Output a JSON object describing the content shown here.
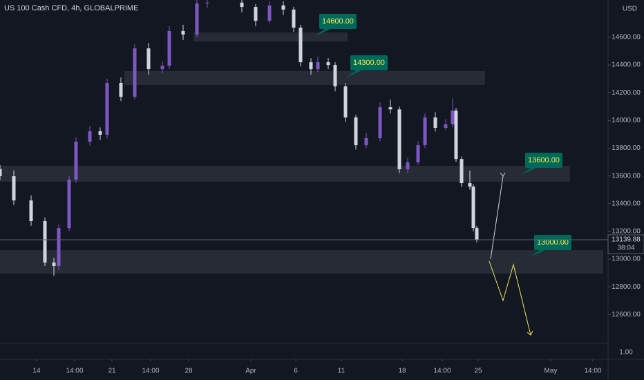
{
  "chart_data": {
    "type": "candlestick",
    "title": "US 100 Cash CFD, 4h, GLOBALPRIME",
    "currency": "USD",
    "up_color": "#7e57c2",
    "down_color": "#d1d4dc",
    "x": [
      0,
      20,
      45,
      65,
      78,
      85,
      100,
      110,
      130,
      145,
      155,
      175,
      195,
      215,
      235,
      245,
      265,
      285,
      300,
      350,
      370,
      390,
      410,
      425,
      435,
      450,
      460,
      475,
      485,
      500,
      515,
      530,
      550,
      565,
      578,
      590,
      605,
      615,
      630,
      645,
      655,
      660,
      668,
      680,
      685,
      690
    ],
    "open": [
      13650,
      13598,
      13423,
      13274,
      12975,
      12950,
      13224,
      13573,
      13847,
      13922,
      13897,
      14271,
      14171,
      14520,
      14370,
      14395,
      14645,
      14620,
      14844,
      14850,
      14819,
      14719,
      14830,
      14800,
      14670,
      14420,
      14370,
      14420,
      14400,
      14246,
      14022,
      13822,
      13872,
      14096,
      14080,
      13648,
      13698,
      13822,
      14022,
      13947,
      13972,
      14071,
      13722,
      13548,
      13523,
      13224
    ],
    "high": [
      13680,
      13640,
      13460,
      13300,
      13010,
      13250,
      13600,
      13880,
      13960,
      13950,
      14300,
      14310,
      14550,
      14560,
      14430,
      14680,
      14690,
      14870,
      14900,
      14880,
      14840,
      14860,
      14860,
      14820,
      14690,
      14450,
      14460,
      14450,
      14420,
      14270,
      14040,
      13910,
      14130,
      14150,
      14100,
      13730,
      13850,
      14050,
      14060,
      14010,
      14160,
      14090,
      13740,
      13640,
      13540,
      13240
    ],
    "low": [
      13570,
      13390,
      13240,
      12950,
      12880,
      12920,
      13200,
      13550,
      13820,
      13860,
      13870,
      14140,
      14150,
      14330,
      14340,
      14370,
      14580,
      14600,
      14810,
      14780,
      14680,
      14700,
      14760,
      14640,
      14390,
      14330,
      14350,
      14370,
      14210,
      13990,
      13790,
      13800,
      13850,
      14050,
      13620,
      13620,
      13680,
      13800,
      13920,
      13930,
      13950,
      13700,
      13520,
      13500,
      13200,
      13120
    ],
    "close": [
      13598,
      13423,
      13274,
      12975,
      12950,
      13224,
      13573,
      13847,
      13922,
      13897,
      14271,
      14171,
      14520,
      14370,
      14395,
      14645,
      14620,
      14844,
      14850,
      14819,
      14719,
      14830,
      14800,
      14670,
      14420,
      14370,
      14420,
      14400,
      14246,
      14022,
      13822,
      13872,
      14096,
      14080,
      13648,
      13698,
      13822,
      14022,
      13947,
      13972,
      14071,
      13722,
      13548,
      13523,
      13224,
      13140
    ],
    "zones": [
      {
        "low": 14570,
        "high": 14635,
        "from": 280,
        "to": 503,
        "label": "14600.00"
      },
      {
        "low": 14256,
        "high": 14356,
        "from": 180,
        "to": 702,
        "label": "14300.00"
      },
      {
        "low": 13558,
        "high": 13673,
        "from": 0,
        "to": 825,
        "label": "13600.00"
      },
      {
        "low": 12895,
        "high": 13064,
        "from": 0,
        "to": 873,
        "label": "13000.00"
      }
    ],
    "last_price": 13139.88,
    "countdown": "38:04",
    "xlim": [
      0,
      880
    ],
    "ylim": [
      12392,
      14869
    ],
    "yticks": [
      {
        "value": 14600,
        "label": "14600.00"
      },
      {
        "value": 14400,
        "label": "14400.00"
      },
      {
        "value": 14200,
        "label": "14200.00"
      },
      {
        "value": 14000,
        "label": "14000.00"
      },
      {
        "value": 13800,
        "label": "13800.00"
      },
      {
        "value": 13600,
        "label": "13600.00"
      },
      {
        "value": 13400,
        "label": "13400.00"
      },
      {
        "value": 13200,
        "label": "13200.00"
      },
      {
        "value": 13000,
        "label": "13000.00"
      },
      {
        "value": 12800,
        "label": "12800.00"
      },
      {
        "value": 12600,
        "label": "12600.00"
      }
    ],
    "xticks": [
      {
        "value": 53,
        "label": "14"
      },
      {
        "value": 108,
        "label": "14:00"
      },
      {
        "value": 162,
        "label": "21"
      },
      {
        "value": 218,
        "label": "14:00"
      },
      {
        "value": 273,
        "label": "28"
      },
      {
        "value": 363,
        "label": "Apr"
      },
      {
        "value": 428,
        "label": "6"
      },
      {
        "value": 494,
        "label": "11"
      },
      {
        "value": 582,
        "label": "18"
      },
      {
        "value": 640,
        "label": "14:00"
      },
      {
        "value": 692,
        "label": "25"
      },
      {
        "value": 797,
        "label": "May"
      },
      {
        "value": 858,
        "label": "14:00"
      }
    ],
    "lower_pane_tick": "1.00"
  }
}
